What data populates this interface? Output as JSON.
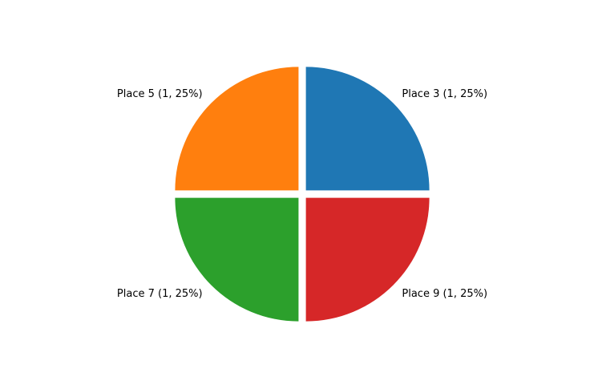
{
  "chart_data": {
    "type": "pie",
    "title": "",
    "slices": [
      {
        "label": "Place 3",
        "value": 1,
        "label_text": "Place 3 (1, 25%)",
        "color": "#1f77b4"
      },
      {
        "label": "Place 5",
        "value": 1,
        "label_text": "Place 5 (1, 25%)",
        "color": "#ff7f0e"
      },
      {
        "label": "Place 7",
        "value": 1,
        "label_text": "Place 7 (1, 25%)",
        "color": "#2ca02c"
      },
      {
        "label": "Place 9",
        "value": 1,
        "label_text": "Place 9 (1, 25%)",
        "color": "#d62728"
      }
    ],
    "start_angle_deg": 0,
    "direction": "counterclockwise",
    "exploded": true,
    "legend": "none"
  }
}
